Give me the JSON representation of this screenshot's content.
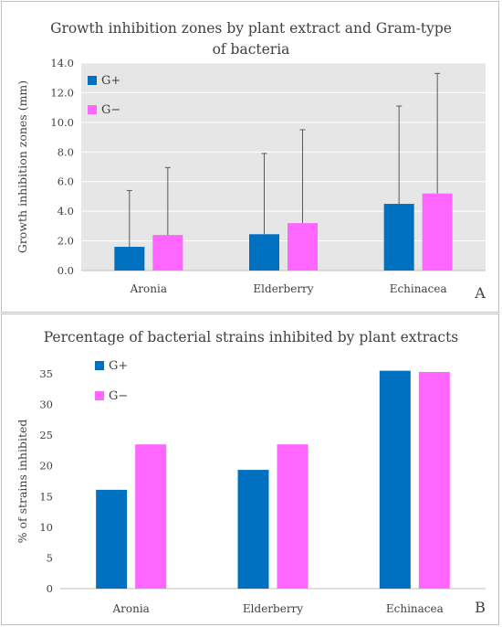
{
  "colors": {
    "gplus": "#0070c0",
    "gminus": "#ff66ff",
    "plot_bg": "#e6e6e6",
    "grid": "#ffffff",
    "error": "#595959"
  },
  "chart_data": [
    {
      "type": "bar",
      "title": "Growth inhibition zones by plant extract and Gram-type of bacteria",
      "title_lines": [
        "Growth inhibition zones by plant extract and Gram-type",
        "of bacteria"
      ],
      "ylabel": "Growth inhibition zones (mm)",
      "xlabel": "",
      "ylim": [
        0,
        14
      ],
      "yticks": [
        "0.0",
        "2.0",
        "4.0",
        "6.0",
        "8.0",
        "10.0",
        "12.0",
        "14.0"
      ],
      "categories": [
        "Aronia",
        "Elderberry",
        "Echinacea"
      ],
      "series": [
        {
          "name": "G+",
          "values": [
            1.6,
            2.45,
            4.5
          ],
          "error_upper": [
            5.4,
            7.9,
            11.1
          ]
        },
        {
          "name": "G−",
          "values": [
            2.4,
            3.2,
            5.2
          ],
          "error_upper": [
            6.95,
            9.5,
            13.3
          ]
        }
      ],
      "grid": true,
      "legend": "top-left",
      "panel_label": "A"
    },
    {
      "type": "bar",
      "title": "Percentage of bacterial strains inhibited by plant extracts",
      "ylabel": "% of strains inhibited",
      "xlabel": "",
      "ylim": [
        0,
        35
      ],
      "yticks": [
        "0",
        "5",
        "10",
        "15",
        "20",
        "25",
        "30",
        "35"
      ],
      "categories": [
        "Aronia",
        "Elderberry",
        "Echinacea"
      ],
      "series": [
        {
          "name": "G+",
          "values": [
            16.1,
            19.35,
            35.5
          ]
        },
        {
          "name": "G−",
          "values": [
            23.5,
            23.5,
            35.3
          ]
        }
      ],
      "grid": false,
      "legend": "top-left",
      "panel_label": "B"
    }
  ]
}
